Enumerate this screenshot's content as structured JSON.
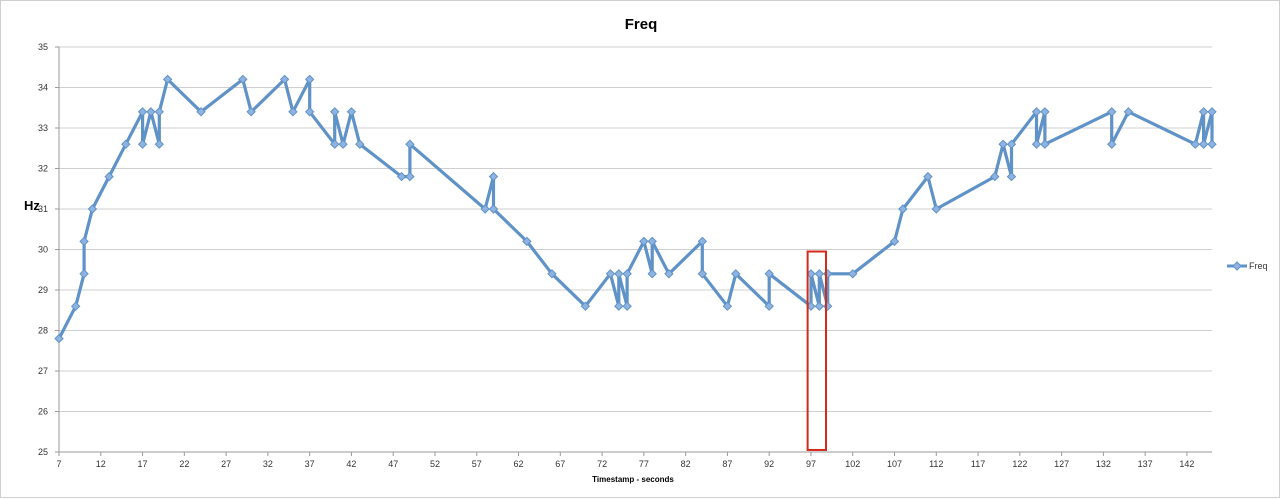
{
  "chart_data": {
    "type": "line",
    "title": "Freq",
    "xlabel": "Timestamp - seconds",
    "ylabel": "Hz",
    "ylim": [
      25,
      35
    ],
    "xlim": [
      7,
      145
    ],
    "x_ticks": [
      "7",
      "12",
      "17",
      "22",
      "27",
      "32",
      "37",
      "42",
      "47",
      "52",
      "57",
      "62",
      "67",
      "72",
      "77",
      "82",
      "87",
      "92",
      "97",
      "102",
      "107",
      "112",
      "117",
      "122",
      "127",
      "132",
      "137",
      "142"
    ],
    "y_ticks": [
      "25",
      "26",
      "27",
      "28",
      "29",
      "30",
      "31",
      "32",
      "33",
      "34",
      "35"
    ],
    "grid": true,
    "legend": "right",
    "color": "#5f92c7",
    "highlight_color": "#d42a1c",
    "highlight_x_range": [
      96.6,
      98.8
    ],
    "highlight_y_range": [
      25.05,
      29.95
    ],
    "series": [
      {
        "name": "Freq",
        "x": [
          7,
          9,
          10,
          10,
          11,
          13,
          15,
          17,
          17,
          18,
          19,
          19,
          20,
          24,
          29,
          30,
          34,
          35,
          37,
          37,
          40,
          40,
          41,
          42,
          43,
          48,
          49,
          49,
          58,
          59,
          59,
          63,
          66,
          70,
          73,
          74,
          74,
          75,
          75,
          77,
          78,
          78,
          80,
          84,
          84,
          87,
          88,
          92,
          92,
          97,
          97,
          98,
          98,
          99,
          99,
          102,
          107,
          108,
          111,
          112,
          119,
          120,
          121,
          121,
          124,
          124,
          125,
          125,
          133,
          133,
          135,
          143,
          144,
          144,
          145,
          145
        ],
        "values": [
          27.8,
          28.6,
          29.4,
          30.2,
          31.0,
          31.8,
          32.6,
          33.4,
          32.6,
          33.4,
          32.6,
          33.4,
          34.2,
          33.4,
          34.2,
          33.4,
          34.2,
          33.4,
          34.2,
          33.4,
          32.6,
          33.4,
          32.6,
          33.4,
          32.6,
          31.8,
          31.8,
          32.6,
          31.0,
          31.8,
          31.0,
          30.2,
          29.4,
          28.6,
          29.4,
          28.6,
          29.4,
          28.6,
          29.4,
          30.2,
          29.4,
          30.2,
          29.4,
          30.2,
          29.4,
          28.6,
          29.4,
          28.6,
          29.4,
          28.6,
          29.4,
          28.6,
          29.4,
          28.6,
          29.4,
          29.4,
          30.2,
          31.0,
          31.8,
          31.0,
          31.8,
          32.6,
          31.8,
          32.6,
          33.4,
          32.6,
          33.4,
          32.6,
          33.4,
          32.6,
          33.4,
          32.6,
          33.4,
          32.6,
          33.4,
          32.6
        ]
      }
    ]
  }
}
